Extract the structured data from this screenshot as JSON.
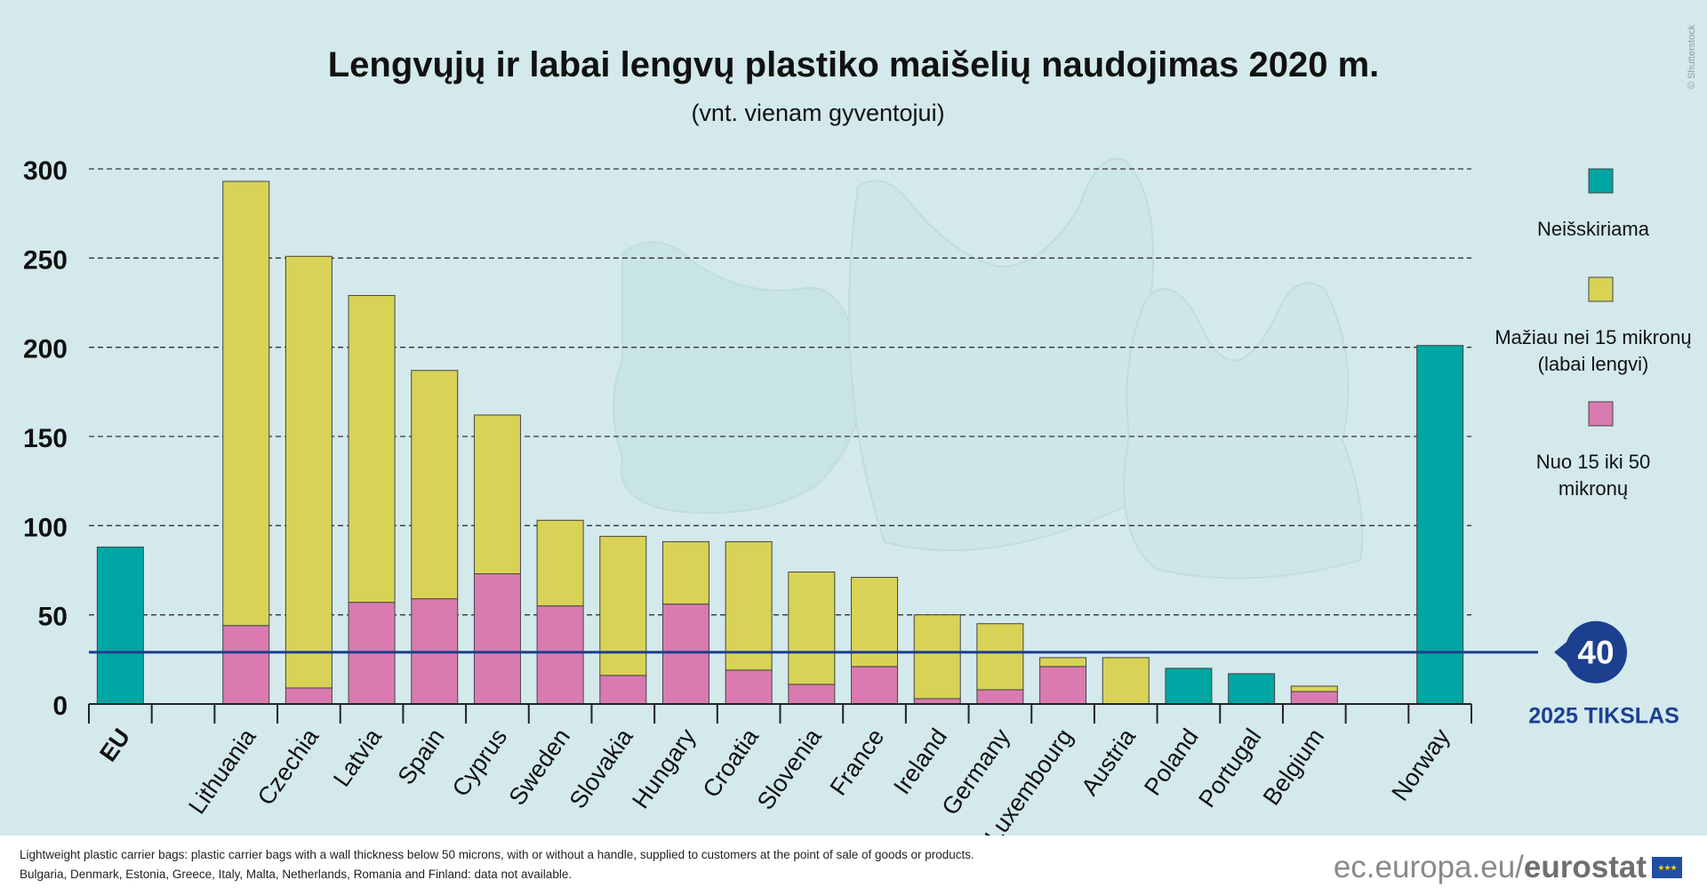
{
  "chart_data": {
    "type": "bar",
    "stacked": true,
    "title": "Lengvųjų ir labai lengvų plastiko maišelių naudojimas 2020 m.",
    "subtitle": "(vnt. vienam gyventojui)",
    "xlabel": "",
    "ylabel": "",
    "ylim": [
      0,
      300
    ],
    "yticks": [
      0,
      50,
      100,
      150,
      200,
      250,
      300
    ],
    "grid": true,
    "legend_position": "right",
    "categories": [
      "EU",
      "",
      "Lithuania",
      "Czechia",
      "Latvia",
      "Spain",
      "Cyprus",
      "Sweden",
      "Slovakia",
      "Hungary",
      "Croatia",
      "Slovenia",
      "France",
      "Ireland",
      "Germany",
      "Luxembourg",
      "Austria",
      "Poland",
      "Portugal",
      "Belgium",
      "",
      "Norway"
    ],
    "series": [
      {
        "name": "Neišskiriama",
        "color": "#00a6a3",
        "values": [
          88,
          null,
          0,
          0,
          0,
          0,
          0,
          0,
          0,
          0,
          0,
          0,
          0,
          0,
          0,
          0,
          0,
          20,
          17,
          0,
          null,
          201
        ]
      },
      {
        "name": "Nuo 15 iki 50 mikronų",
        "color": "#d97bb0",
        "values": [
          0,
          null,
          44,
          9,
          57,
          59,
          73,
          55,
          16,
          56,
          19,
          11,
          21,
          3,
          8,
          21,
          0,
          0,
          0,
          7,
          null,
          0
        ]
      },
      {
        "name": "Mažiau nei 15 mikronų (labai lengvi)",
        "color": "#d8d356",
        "values": [
          0,
          null,
          249,
          242,
          172,
          128,
          89,
          48,
          78,
          35,
          72,
          63,
          50,
          47,
          37,
          5,
          26,
          0,
          0,
          3,
          null,
          0
        ]
      }
    ],
    "legend": [
      {
        "label_lines": [
          "Neišskiriama"
        ],
        "color": "#00a6a3"
      },
      {
        "label_lines": [
          "Mažiau nei 15 mikronų",
          "(labai lengvi)"
        ],
        "color": "#d8d356"
      },
      {
        "label_lines": [
          "Nuo 15 iki 50",
          "mikronų"
        ],
        "color": "#d97bb0"
      }
    ],
    "target": {
      "value": 40,
      "value_label": "40",
      "label": "2025 TIKSLAS",
      "color": "#1d3f8f"
    }
  },
  "watermark": "© Shutterstock",
  "footer": {
    "note1": "Lightweight plastic carrier bags: plastic carrier bags with a wall thickness below 50 microns, with or without a handle, supplied to customers at the point of sale of goods or products.",
    "note2": "Bulgaria, Denmark, Estonia, Greece, Italy, Malta, Netherlands, Romania and Finland: data not available.",
    "brand_url": "ec.europa.eu/",
    "brand_name": "eurostat",
    "flag_icon": "eu-flag-icon"
  }
}
